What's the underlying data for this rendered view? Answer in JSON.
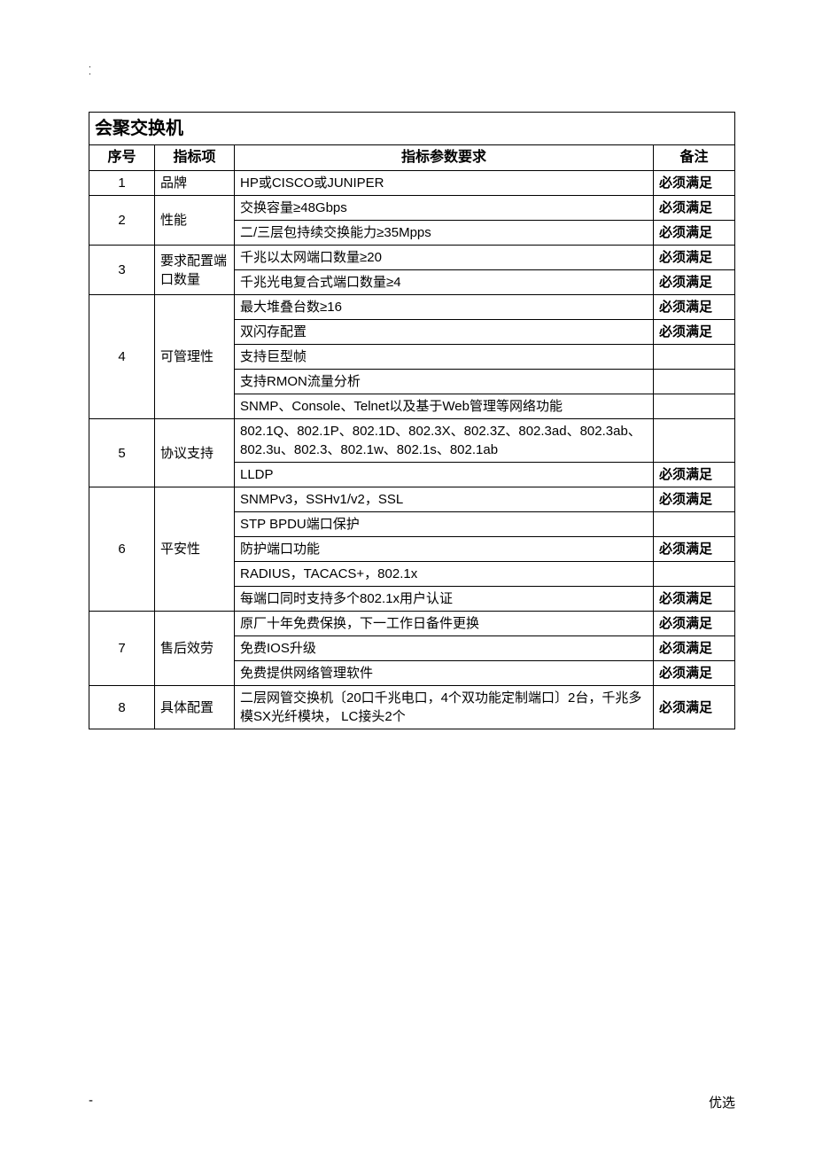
{
  "decor": {
    "dot1": ".",
    "dot2": "."
  },
  "table": {
    "title": "会聚交换机",
    "headers": {
      "seq": "序号",
      "item": "指标项",
      "req": "指标参数要求",
      "note": "备注"
    },
    "rows": [
      {
        "seq": "1",
        "item": "品牌",
        "reqs": [
          {
            "text": "HP或CISCO或JUNIPER",
            "note": "必须满足"
          }
        ]
      },
      {
        "seq": "2",
        "item": "性能",
        "reqs": [
          {
            "text": "交换容量≥48Gbps",
            "note": "必须满足"
          },
          {
            "text": "二/三层包持续交换能力≥35Mpps",
            "note": "必须满足"
          }
        ]
      },
      {
        "seq": "3",
        "item": "要求配置端口数量",
        "reqs": [
          {
            "text": "千兆以太网端口数量≥20",
            "note": "必须满足"
          },
          {
            "text": "千兆光电复合式端口数量≥4",
            "note": "必须满足"
          }
        ]
      },
      {
        "seq": "4",
        "item": "可管理性",
        "reqs": [
          {
            "text": "最大堆叠台数≥16",
            "note": "必须满足"
          },
          {
            "text": "双闪存配置",
            "note": "必须满足"
          },
          {
            "text": "支持巨型帧",
            "note": ""
          },
          {
            "text": "支持RMON流量分析",
            "note": ""
          },
          {
            "text": "SNMP、Console、Telnet以及基于Web管理等网络功能",
            "note": ""
          }
        ]
      },
      {
        "seq": "5",
        "item": "协议支持",
        "reqs": [
          {
            "text": "802.1Q、802.1P、802.1D、802.3X、802.3Z、802.3ad、802.3ab、802.3u、802.3、802.1w、802.1s、802.1ab",
            "note": ""
          },
          {
            "text": "LLDP",
            "note": "必须满足"
          }
        ]
      },
      {
        "seq": "6",
        "item": "平安性",
        "reqs": [
          {
            "text": "SNMPv3，SSHv1/v2，SSL",
            "note": "必须满足"
          },
          {
            "text": "STP BPDU端口保护",
            "note": ""
          },
          {
            "text": "防护端口功能",
            "note": "必须满足"
          },
          {
            "text": "RADIUS，TACACS+，802.1x",
            "note": ""
          },
          {
            "text": "每端口同时支持多个802.1x用户认证",
            "note": "必须满足"
          }
        ]
      },
      {
        "seq": "7",
        "item": "售后效劳",
        "reqs": [
          {
            "text": "原厂十年免费保换，下一工作日备件更换",
            "note": "必须满足"
          },
          {
            "text": "免费IOS升级",
            "note": "必须满足"
          },
          {
            "text": "免费提供网络管理软件",
            "note": "必须满足"
          }
        ]
      },
      {
        "seq": "8",
        "item": "具体配置",
        "reqs": [
          {
            "text": "二层网管交换机〔20口千兆电口，4个双功能定制端口〕2台，千兆多模SX光纤模块， LC接头2个",
            "note": "必须满足"
          }
        ]
      }
    ]
  },
  "footer": {
    "left": "-",
    "right": "优选"
  }
}
